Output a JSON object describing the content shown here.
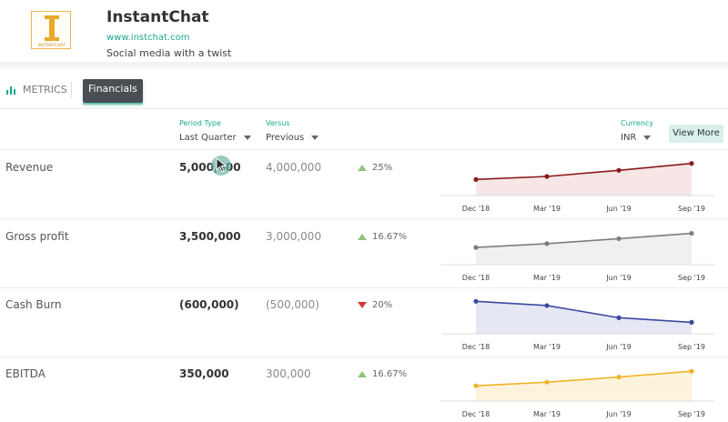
{
  "company": {
    "logo_text": "INSTANTCHAT",
    "name": "InstantChat",
    "url": "www.instchat.com",
    "tagline": "Social media with a twist"
  },
  "tabs": {
    "metrics": "METRICS",
    "financials": "Financials"
  },
  "filters": {
    "period_type": {
      "label": "Period Type",
      "value": "Last Quarter"
    },
    "versus": {
      "label": "Versus",
      "value": "Previous"
    },
    "currency": {
      "label": "Currency",
      "value": "INR"
    },
    "view_more": "View More"
  },
  "colors": {
    "accent": "#1aa88f",
    "up": "#92c47d",
    "down": "#cc3b3b"
  },
  "chart_data": [
    {
      "type": "area",
      "name": "Revenue",
      "categories": [
        "Dec '18",
        "Mar '19",
        "Jun '19",
        "Sep '19"
      ],
      "values": [
        0.42,
        0.5,
        0.66,
        0.84
      ],
      "color": "#8b1a1a",
      "fill": "#f6e6e6"
    },
    {
      "type": "area",
      "name": "Gross profit",
      "categories": [
        "Dec '18",
        "Mar '19",
        "Jun '19",
        "Sep '19"
      ],
      "values": [
        0.45,
        0.55,
        0.68,
        0.82
      ],
      "color": "#7d7d7d",
      "fill": "#f0f0f0"
    },
    {
      "type": "area",
      "name": "Cash Burn",
      "categories": [
        "Dec '18",
        "Mar '19",
        "Jun '19",
        "Sep '19"
      ],
      "values": [
        0.85,
        0.74,
        0.42,
        0.3
      ],
      "color": "#3b4a9e",
      "fill": "#e5e7f3"
    },
    {
      "type": "area",
      "name": "EBITDA",
      "categories": [
        "Dec '18",
        "Mar '19",
        "Jun '19",
        "Sep '19"
      ],
      "values": [
        0.42,
        0.52,
        0.66,
        0.82
      ],
      "color": "#f0b429",
      "fill": "#fdf3dc"
    }
  ],
  "rows": [
    {
      "label": "Revenue",
      "current": "5,000,000",
      "previous": "4,000,000",
      "direction": "up",
      "change": "25%"
    },
    {
      "label": "Gross profit",
      "current": "3,500,000",
      "previous": "3,000,000",
      "direction": "up",
      "change": "16.67%"
    },
    {
      "label": "Cash Burn",
      "current": "(600,000)",
      "previous": "(500,000)",
      "direction": "down",
      "change": "20%"
    },
    {
      "label": "EBITDA",
      "current": "350,000",
      "previous": "300,000",
      "direction": "up",
      "change": "16.67%"
    }
  ]
}
